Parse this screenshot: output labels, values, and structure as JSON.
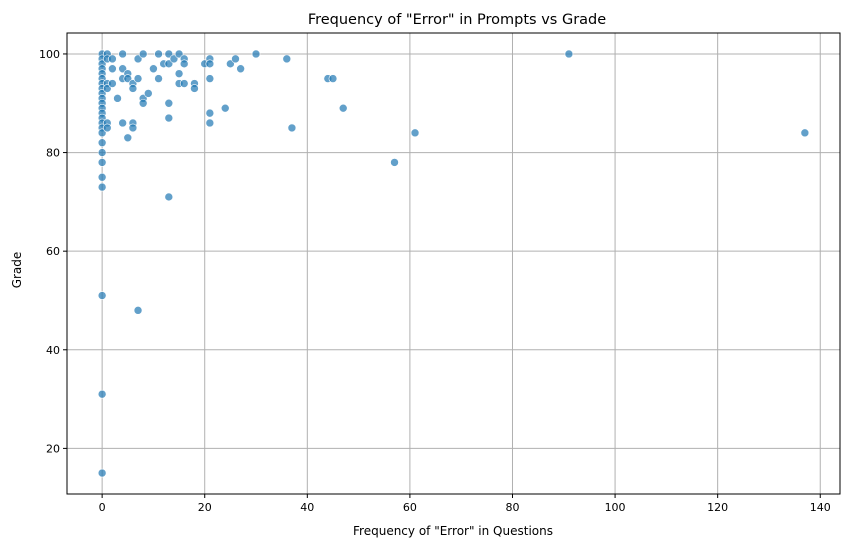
{
  "chart_data": {
    "type": "scatter",
    "title": "Frequency of \"Error\" in Prompts vs Grade",
    "xlabel": "Frequency of \"Error\" in Questions",
    "ylabel": "Grade",
    "xlim": [
      -6.85,
      143.85
    ],
    "ylim": [
      10.75,
      104.25
    ],
    "xticks": [
      0,
      20,
      40,
      60,
      80,
      100,
      120,
      140
    ],
    "yticks": [
      20,
      40,
      60,
      80,
      100
    ],
    "grid": true,
    "marker_color": "#1f77b4",
    "marker_alpha": 0.7,
    "points": [
      [
        0,
        100
      ],
      [
        0,
        99
      ],
      [
        0,
        98
      ],
      [
        0,
        97
      ],
      [
        0,
        96
      ],
      [
        0,
        95
      ],
      [
        0,
        94
      ],
      [
        0,
        93
      ],
      [
        0,
        92
      ],
      [
        0,
        91
      ],
      [
        0,
        90
      ],
      [
        0,
        89
      ],
      [
        0,
        88
      ],
      [
        0,
        87
      ],
      [
        0,
        86
      ],
      [
        0,
        85
      ],
      [
        0,
        84
      ],
      [
        0,
        82
      ],
      [
        0,
        80
      ],
      [
        0,
        78
      ],
      [
        0,
        75
      ],
      [
        0,
        73
      ],
      [
        0,
        51
      ],
      [
        0,
        31
      ],
      [
        0,
        15
      ],
      [
        1,
        100
      ],
      [
        1,
        99
      ],
      [
        1,
        94
      ],
      [
        1,
        93
      ],
      [
        1,
        86
      ],
      [
        1,
        85
      ],
      [
        2,
        99
      ],
      [
        2,
        97
      ],
      [
        2,
        94
      ],
      [
        3,
        91
      ],
      [
        4,
        100
      ],
      [
        4,
        97
      ],
      [
        4,
        95
      ],
      [
        4,
        86
      ],
      [
        5,
        96
      ],
      [
        5,
        95
      ],
      [
        5,
        83
      ],
      [
        6,
        94
      ],
      [
        6,
        93
      ],
      [
        6,
        86
      ],
      [
        6,
        85
      ],
      [
        7,
        99
      ],
      [
        7,
        95
      ],
      [
        7,
        48
      ],
      [
        8,
        100
      ],
      [
        8,
        91
      ],
      [
        8,
        90
      ],
      [
        9,
        92
      ],
      [
        10,
        97
      ],
      [
        11,
        100
      ],
      [
        11,
        95
      ],
      [
        12,
        98
      ],
      [
        13,
        100
      ],
      [
        13,
        98
      ],
      [
        13,
        90
      ],
      [
        13,
        87
      ],
      [
        13,
        71
      ],
      [
        14,
        99
      ],
      [
        15,
        100
      ],
      [
        15,
        96
      ],
      [
        15,
        94
      ],
      [
        16,
        99
      ],
      [
        16,
        98
      ],
      [
        16,
        94
      ],
      [
        18,
        94
      ],
      [
        18,
        93
      ],
      [
        20,
        98
      ],
      [
        21,
        99
      ],
      [
        21,
        98
      ],
      [
        21,
        95
      ],
      [
        21,
        88
      ],
      [
        21,
        86
      ],
      [
        24,
        89
      ],
      [
        25,
        98
      ],
      [
        26,
        99
      ],
      [
        27,
        97
      ],
      [
        30,
        100
      ],
      [
        36,
        99
      ],
      [
        37,
        85
      ],
      [
        44,
        95
      ],
      [
        45,
        95
      ],
      [
        47,
        89
      ],
      [
        57,
        78
      ],
      [
        61,
        84
      ],
      [
        91,
        100
      ],
      [
        137,
        84
      ]
    ]
  }
}
